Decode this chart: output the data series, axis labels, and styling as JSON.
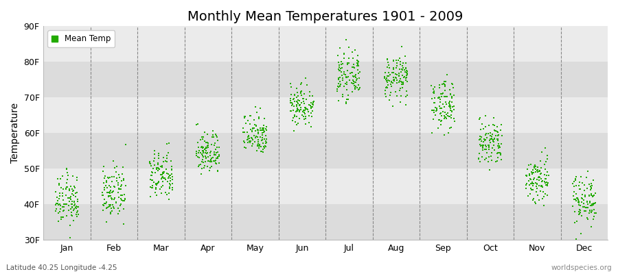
{
  "title": "Monthly Mean Temperatures 1901 - 2009",
  "ylabel": "Temperature",
  "xlabel_labels": [
    "Jan",
    "Feb",
    "Mar",
    "Apr",
    "May",
    "Jun",
    "Jul",
    "Aug",
    "Sep",
    "Oct",
    "Nov",
    "Dec"
  ],
  "ylim": [
    30,
    90
  ],
  "yticks": [
    30,
    40,
    50,
    60,
    70,
    80,
    90
  ],
  "ytick_labels": [
    "30F",
    "40F",
    "50F",
    "60F",
    "70F",
    "80F",
    "90F"
  ],
  "marker_color": "#22AA00",
  "marker": "s",
  "marker_size": 4,
  "bg_light": "#EBEBEB",
  "bg_dark": "#DCDCDC",
  "grid_color": "#FFFFFF",
  "vline_color": "#888888",
  "title_fontsize": 14,
  "legend_label": "Mean Temp",
  "footer_left": "Latitude 40.25 Longitude -4.25",
  "footer_right": "worldspecies.org",
  "year_start": 1901,
  "year_end": 2009,
  "monthly_means_F": [
    41.0,
    43.0,
    48.0,
    54.5,
    60.0,
    68.0,
    76.0,
    75.5,
    68.0,
    57.0,
    47.0,
    41.5
  ],
  "monthly_stds_F": [
    3.5,
    3.5,
    3.5,
    3.0,
    3.0,
    3.0,
    3.0,
    3.0,
    3.5,
    3.5,
    3.5,
    3.5
  ]
}
